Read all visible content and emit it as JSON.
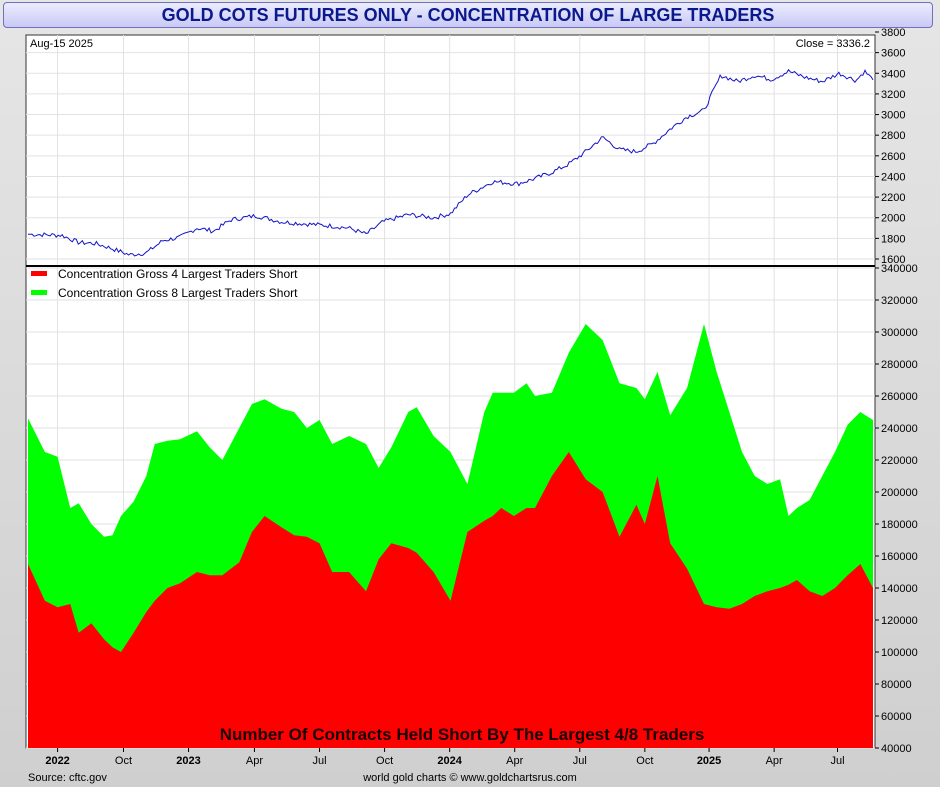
{
  "title": "GOLD COTS FUTURES ONLY - CONCENTRATION OF LARGE TRADERS",
  "date_label": "Aug-15  2025",
  "close_label": "Close = 3336.2",
  "source_label": "Source: cftc.gov",
  "footer_label": "world gold charts © www.goldchartsrus.com",
  "overlay_label": "Number Of Contracts Held Short By The Largest 4/8 Traders",
  "colors": {
    "price_line": "#1414c8",
    "gross4": "#ff0000",
    "gross8": "#00ff00",
    "title_text": "#0a1a8c"
  },
  "chart_data": [
    {
      "type": "line",
      "series": [
        {
          "x": [
            0,
            0.04,
            0.06,
            0.08,
            0.1,
            0.12,
            0.14,
            0.16,
            0.18,
            0.2,
            0.22,
            0.24,
            0.27,
            0.3,
            0.33,
            0.36,
            0.38,
            0.4,
            0.42,
            0.45,
            0.48,
            0.5,
            0.52,
            0.55,
            0.58,
            0.6,
            0.62,
            0.64,
            0.66,
            0.68,
            0.7,
            0.72,
            0.74,
            0.76,
            0.78,
            0.8,
            0.82,
            0.84,
            0.86,
            0.88,
            0.9,
            0.92,
            0.94,
            0.96,
            0.98,
            0.99,
            1.0
          ],
          "values": [
            1840,
            1830,
            1760,
            1750,
            1700,
            1640,
            1660,
            1780,
            1810,
            1900,
            1870,
            1980,
            2020,
            1960,
            1940,
            1920,
            1900,
            1840,
            1960,
            2030,
            2000,
            2040,
            2220,
            2350,
            2330,
            2380,
            2440,
            2520,
            2640,
            2780,
            2660,
            2640,
            2720,
            2860,
            2980,
            3040,
            3380,
            3320,
            3380,
            3340,
            3420,
            3360,
            3320,
            3400,
            3330,
            3420,
            3336.2
          ]
        }
      ],
      "ylim": [
        1600,
        3800
      ],
      "yticks": [
        1600,
        1800,
        2000,
        2200,
        2400,
        2600,
        2800,
        3000,
        3200,
        3400,
        3600,
        3800
      ]
    },
    {
      "type": "area",
      "x_ticks": [
        {
          "label": "2022",
          "pos": 0.035,
          "bold": true
        },
        {
          "label": "Oct",
          "pos": 0.113,
          "bold": false
        },
        {
          "label": "2023",
          "pos": 0.19,
          "bold": true
        },
        {
          "label": "Apr",
          "pos": 0.268,
          "bold": false
        },
        {
          "label": "Jul",
          "pos": 0.345,
          "bold": false
        },
        {
          "label": "Oct",
          "pos": 0.422,
          "bold": false
        },
        {
          "label": "2024",
          "pos": 0.499,
          "bold": true
        },
        {
          "label": "Apr",
          "pos": 0.576,
          "bold": false
        },
        {
          "label": "Jul",
          "pos": 0.653,
          "bold": false
        },
        {
          "label": "Oct",
          "pos": 0.73,
          "bold": false
        },
        {
          "label": "2025",
          "pos": 0.806,
          "bold": true
        },
        {
          "label": "Apr",
          "pos": 0.883,
          "bold": false
        },
        {
          "label": "Jul",
          "pos": 0.958,
          "bold": false
        }
      ],
      "ylim": [
        40000,
        340000
      ],
      "yticks": [
        40000,
        60000,
        80000,
        100000,
        120000,
        140000,
        160000,
        180000,
        200000,
        220000,
        240000,
        260000,
        280000,
        300000,
        320000,
        340000
      ],
      "series": [
        {
          "name": "Concentration Gross 8 Largest Traders Short",
          "x": [
            0,
            0.02,
            0.035,
            0.05,
            0.06,
            0.075,
            0.09,
            0.1,
            0.11,
            0.125,
            0.14,
            0.15,
            0.165,
            0.18,
            0.2,
            0.215,
            0.23,
            0.25,
            0.265,
            0.28,
            0.3,
            0.315,
            0.33,
            0.345,
            0.36,
            0.38,
            0.4,
            0.415,
            0.43,
            0.45,
            0.46,
            0.48,
            0.5,
            0.52,
            0.54,
            0.55,
            0.56,
            0.575,
            0.59,
            0.6,
            0.62,
            0.64,
            0.66,
            0.68,
            0.7,
            0.72,
            0.73,
            0.745,
            0.76,
            0.78,
            0.8,
            0.815,
            0.83,
            0.845,
            0.86,
            0.875,
            0.89,
            0.9,
            0.91,
            0.925,
            0.94,
            0.955,
            0.97,
            0.985,
            1.0
          ],
          "values": [
            246000,
            225000,
            222000,
            190000,
            193000,
            180000,
            172000,
            173000,
            185000,
            194000,
            210000,
            230000,
            232000,
            233000,
            238000,
            228000,
            220000,
            240000,
            255000,
            258000,
            252000,
            250000,
            240000,
            245000,
            230000,
            235000,
            230000,
            215000,
            228000,
            250000,
            253000,
            235000,
            225000,
            205000,
            250000,
            262000,
            262000,
            262000,
            268000,
            260000,
            262000,
            287000,
            305000,
            295000,
            268000,
            265000,
            258000,
            275000,
            248000,
            265000,
            305000,
            275000,
            250000,
            225000,
            210000,
            205000,
            208000,
            185000,
            190000,
            195000,
            210000,
            225000,
            242000,
            250000,
            245000
          ]
        },
        {
          "name": "Concentration Gross 4 Largest Traders Short",
          "x": [
            0,
            0.02,
            0.035,
            0.05,
            0.06,
            0.075,
            0.09,
            0.1,
            0.11,
            0.125,
            0.14,
            0.15,
            0.165,
            0.18,
            0.2,
            0.215,
            0.23,
            0.25,
            0.265,
            0.28,
            0.3,
            0.315,
            0.33,
            0.345,
            0.36,
            0.38,
            0.4,
            0.415,
            0.43,
            0.45,
            0.46,
            0.48,
            0.5,
            0.52,
            0.54,
            0.55,
            0.56,
            0.575,
            0.59,
            0.6,
            0.62,
            0.64,
            0.66,
            0.68,
            0.7,
            0.72,
            0.73,
            0.745,
            0.76,
            0.78,
            0.8,
            0.815,
            0.83,
            0.845,
            0.86,
            0.875,
            0.89,
            0.9,
            0.91,
            0.925,
            0.94,
            0.955,
            0.97,
            0.985,
            1.0
          ],
          "values": [
            155000,
            132000,
            128000,
            130000,
            112000,
            118000,
            108000,
            103000,
            100000,
            112000,
            125000,
            132000,
            140000,
            143000,
            150000,
            148000,
            148000,
            156000,
            175000,
            185000,
            178000,
            173000,
            172000,
            168000,
            150000,
            150000,
            138000,
            158000,
            168000,
            165000,
            162000,
            150000,
            132000,
            175000,
            182000,
            185000,
            190000,
            185000,
            190000,
            190000,
            210000,
            225000,
            208000,
            200000,
            172000,
            192000,
            180000,
            210000,
            168000,
            152000,
            130000,
            128000,
            127000,
            130000,
            135000,
            138000,
            140000,
            142000,
            145000,
            138000,
            135000,
            140000,
            148000,
            155000,
            140000
          ]
        }
      ]
    }
  ]
}
